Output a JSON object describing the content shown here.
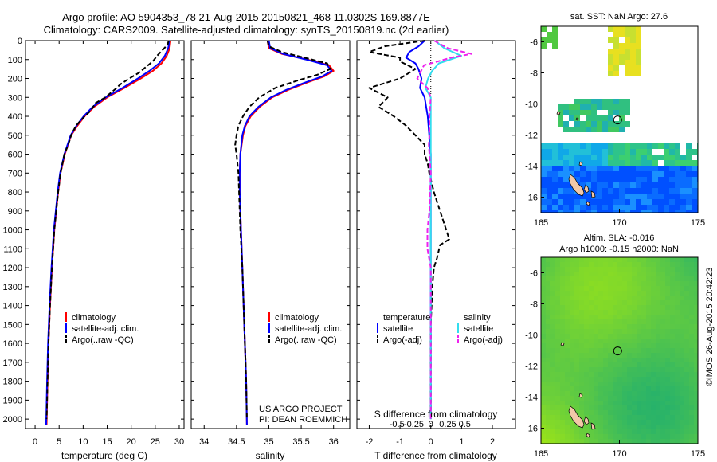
{
  "title_line1": "Argo profile: AO 5904353_78 21-Aug-2015 20150821_468 11.0302S 169.8877E",
  "title_line2": "Climatology: CARS2009. Satellite-adjusted climatology: synTS_20150819.nc (2d earlier)",
  "credit_line1": "US ARGO PROJECT",
  "credit_line2": "PI: DEAN ROEMMICH",
  "timestamp": "©IMOS 26-Aug-2015 20:42:23",
  "colors": {
    "climatology": "#ff0000",
    "satellite": "#0000ff",
    "argo": "#000000",
    "sal_satellite": "#33ddee",
    "sal_argo": "#ee22ee",
    "sst_land": "#f2c8a8"
  },
  "chart_data": [
    {
      "type": "line",
      "panel": "temperature",
      "xlabel": "temperature (deg C)",
      "ylabel": "",
      "xlim": [
        -2,
        31
      ],
      "ylim": [
        2050,
        0
      ],
      "xticks": [
        0,
        5,
        10,
        15,
        20,
        25,
        30
      ],
      "yticks": [
        0,
        100,
        200,
        300,
        400,
        500,
        600,
        700,
        800,
        900,
        1000,
        1100,
        1200,
        1300,
        1400,
        1500,
        1600,
        1700,
        1800,
        1900,
        2000
      ],
      "legend": [
        "climatology",
        "satellite-adj. clim.",
        "Argo(..raw -QC)"
      ],
      "series": [
        {
          "name": "climatology",
          "y": [
            0,
            40,
            80,
            120,
            160,
            200,
            250,
            300,
            350,
            400,
            450,
            500,
            600,
            700,
            800,
            900,
            1000,
            1200,
            1400,
            1600,
            1800,
            2030
          ],
          "x": [
            28.2,
            28.0,
            27.4,
            26.3,
            24.5,
            22.0,
            18.6,
            15.0,
            12.3,
            10.3,
            8.8,
            7.5,
            6.2,
            5.3,
            4.8,
            4.4,
            4.0,
            3.5,
            3.1,
            2.8,
            2.6,
            2.4
          ]
        },
        {
          "name": "satellite-adj. clim.",
          "y": [
            0,
            40,
            80,
            120,
            160,
            200,
            250,
            300,
            350,
            400,
            450,
            500,
            600,
            700,
            800,
            900,
            1000,
            1200,
            1400,
            1600,
            1800,
            2030
          ],
          "x": [
            28.0,
            27.7,
            27.0,
            25.8,
            23.8,
            21.4,
            18.2,
            14.7,
            12.0,
            10.1,
            8.6,
            7.4,
            6.1,
            5.2,
            4.7,
            4.3,
            3.9,
            3.4,
            3.0,
            2.7,
            2.5,
            2.3
          ]
        },
        {
          "name": "Argo(..raw -QC)",
          "y": [
            0,
            20,
            50,
            80,
            110,
            140,
            170,
            200,
            230,
            260,
            300,
            330,
            370,
            400,
            450,
            500,
            550,
            600,
            700,
            800,
            900,
            1000,
            1200,
            1400,
            1600,
            1800,
            2000
          ],
          "x": [
            27.8,
            27.6,
            26.5,
            25.4,
            24.5,
            23.0,
            21.6,
            19.6,
            17.8,
            16.5,
            14.6,
            12.6,
            11.6,
            10.3,
            8.5,
            7.5,
            6.9,
            6.1,
            5.3,
            4.8,
            4.4,
            4.0,
            3.5,
            3.1,
            2.8,
            2.6,
            2.4
          ]
        }
      ]
    },
    {
      "type": "line",
      "panel": "salinity",
      "xlabel": "salinity",
      "ylabel": "",
      "xlim": [
        33.8,
        36.25
      ],
      "ylim": [
        2050,
        0
      ],
      "xticks": [
        34,
        34.5,
        35,
        35.5,
        36
      ],
      "legend": [
        "climatology",
        "satellite-adj. clim.",
        "Argo(..raw -QC)"
      ],
      "series": [
        {
          "name": "climatology",
          "y": [
            0,
            40,
            70,
            100,
            130,
            160,
            190,
            220,
            260,
            300,
            350,
            400,
            450,
            500,
            600,
            700,
            800,
            900,
            1000,
            1200,
            1400,
            1600,
            1800,
            2030
          ],
          "x": [
            34.98,
            35.0,
            35.2,
            35.6,
            35.93,
            36.0,
            35.85,
            35.6,
            35.3,
            35.05,
            34.86,
            34.72,
            34.64,
            34.6,
            34.56,
            34.55,
            34.55,
            34.56,
            34.57,
            34.59,
            34.61,
            34.63,
            34.65,
            34.66
          ]
        },
        {
          "name": "satellite-adj. clim.",
          "y": [
            0,
            40,
            70,
            100,
            130,
            160,
            190,
            220,
            260,
            300,
            350,
            400,
            450,
            500,
            600,
            700,
            800,
            900,
            1000,
            1200,
            1400,
            1600,
            1800,
            2030
          ],
          "x": [
            35.0,
            35.02,
            35.22,
            35.58,
            35.9,
            35.97,
            35.82,
            35.57,
            35.27,
            35.03,
            34.84,
            34.7,
            34.63,
            34.59,
            34.56,
            34.55,
            34.55,
            34.56,
            34.57,
            34.59,
            34.61,
            34.63,
            34.65,
            34.66
          ]
        },
        {
          "name": "Argo(..raw -QC)",
          "y": [
            0,
            30,
            60,
            90,
            120,
            150,
            180,
            210,
            250,
            300,
            350,
            400,
            450,
            500,
            550,
            600,
            700,
            800,
            900,
            1000,
            1200,
            1400,
            1600,
            1800,
            2000
          ],
          "x": [
            34.98,
            35.0,
            35.2,
            35.55,
            35.9,
            35.95,
            35.75,
            35.45,
            35.1,
            34.85,
            34.7,
            34.6,
            34.53,
            34.5,
            34.48,
            34.5,
            34.53,
            34.54,
            34.55,
            34.56,
            34.59,
            34.61,
            34.63,
            34.65,
            34.66
          ]
        }
      ]
    },
    {
      "type": "line",
      "panel": "difference",
      "xlabel": "T difference from climatology",
      "xlabel_top": "S difference from climatology",
      "xlim": [
        -2.4,
        2.75
      ],
      "ylim": [
        2050,
        0
      ],
      "xticks": [
        -2,
        -1,
        0,
        1,
        2
      ],
      "xticks_salinity": [
        -0.5,
        -0.25,
        0,
        0.25,
        0.5
      ],
      "legend_headers": [
        "temperature",
        "salinity"
      ],
      "legend": [
        "satellite",
        "Argo(-adj)",
        "satellite",
        "Argo(-adj)"
      ],
      "series": [
        {
          "name": "temperature satellite",
          "y": [
            0,
            30,
            60,
            90,
            120,
            150,
            200,
            250,
            300,
            350,
            400,
            500,
            600,
            700,
            800,
            1000,
            1200,
            1400,
            1600,
            1800,
            2000
          ],
          "x": [
            -0.2,
            -0.4,
            -0.7,
            -0.8,
            -0.5,
            -0.4,
            -0.3,
            -0.35,
            -0.2,
            -0.15,
            -0.1,
            -0.05,
            0,
            0,
            0,
            0,
            0,
            0,
            0,
            0,
            0
          ]
        },
        {
          "name": "temperature Argo(-adj)",
          "y": [
            0,
            30,
            60,
            90,
            110,
            150,
            200,
            250,
            300,
            350,
            400,
            450,
            500,
            550,
            600,
            650,
            700,
            800,
            900,
            1000,
            1050,
            1080,
            1150,
            1200,
            1300,
            1500,
            1700,
            2000
          ],
          "x": [
            -0.2,
            -1.5,
            -2.0,
            -1.0,
            -1.0,
            -0.5,
            -1.0,
            -2.0,
            -1.4,
            -1.7,
            -1.2,
            -0.8,
            -0.5,
            -0.2,
            -0.2,
            -0.1,
            -0.05,
            0.1,
            0.3,
            0.5,
            0.6,
            0.3,
            0.2,
            0.1,
            0.05,
            0.0,
            0.0,
            0.0
          ]
        },
        {
          "name": "salinity satellite",
          "y": [
            0,
            40,
            80,
            120,
            160,
            200,
            250,
            300,
            400,
            500,
            600,
            800,
            1000,
            1200,
            1500,
            2000
          ],
          "x": [
            0.06,
            0.2,
            0.45,
            0.12,
            0.02,
            -0.04,
            -0.08,
            0.0,
            0.0,
            0.0,
            0.0,
            0.0,
            0.0,
            0.0,
            0.0,
            0.0
          ]
        },
        {
          "name": "salinity Argo(-adj)",
          "y": [
            0,
            40,
            70,
            90,
            130,
            200,
            250,
            300,
            400,
            500,
            550,
            600,
            700,
            900,
            1000,
            1100,
            1200,
            1300,
            1500,
            2000
          ],
          "x": [
            0.05,
            0.25,
            0.6,
            0.3,
            -0.1,
            -0.2,
            -0.05,
            0.0,
            -0.02,
            -0.02,
            -0.03,
            -0.02,
            0.0,
            -0.02,
            -0.05,
            -0.05,
            0.0,
            0.0,
            0.0,
            0.0
          ]
        }
      ]
    },
    {
      "type": "heatmap",
      "panel": "sst-map",
      "title": "sat. SST: NaN Argo: 27.6",
      "xlim": [
        165,
        175
      ],
      "ylim": [
        -17,
        -5
      ],
      "xticks": [
        165,
        170,
        175
      ],
      "yticks": [
        -6,
        -8,
        -10,
        -12,
        -14,
        -16
      ],
      "argo_position": {
        "lon": 169.8877,
        "lat": -11.0302
      }
    },
    {
      "type": "heatmap",
      "panel": "sla-map",
      "title_line1": "Altim. SLA: -0.016",
      "title_line2": "Argo h1000: -0.15 h2000: NaN",
      "xlim": [
        165,
        175
      ],
      "ylim": [
        -17,
        -5
      ],
      "xticks": [
        165,
        170,
        175
      ],
      "yticks": [
        -6,
        -8,
        -10,
        -12,
        -14,
        -16
      ],
      "argo_position": {
        "lon": 169.8877,
        "lat": -11.0302
      }
    }
  ]
}
